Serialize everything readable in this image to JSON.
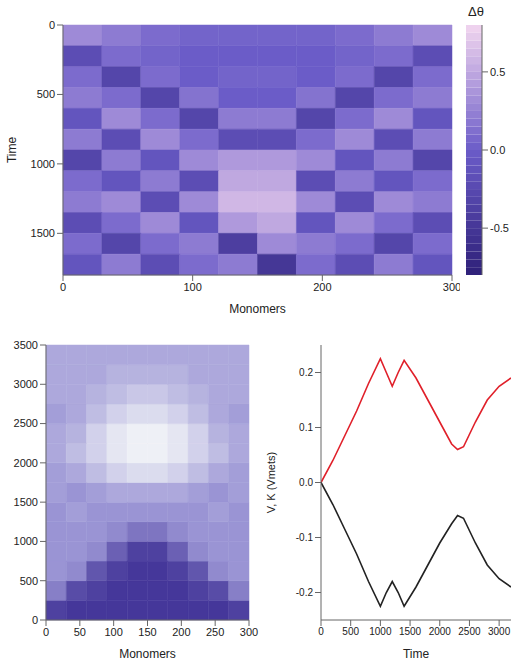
{
  "chart_data": [
    {
      "type": "heatmap",
      "x_label": "Monomers",
      "y_label": "Time",
      "x_edges": [
        0,
        30,
        60,
        90,
        120,
        150,
        180,
        210,
        240,
        270,
        300
      ],
      "y_edges": [
        0,
        150,
        300,
        450,
        600,
        750,
        900,
        1050,
        1200,
        1350,
        1500,
        1650,
        1800
      ],
      "cells": [
        [
          0.3,
          0.2,
          0.1,
          0.05,
          0.05,
          0.05,
          0.05,
          0.1,
          0.2,
          0.3
        ],
        [
          -0.2,
          0.1,
          0.05,
          0,
          0,
          0,
          0,
          0.05,
          0.1,
          -0.2
        ],
        [
          0.1,
          -0.3,
          0.1,
          0,
          0.05,
          0.05,
          0,
          0.1,
          -0.3,
          0.1
        ],
        [
          0.2,
          0.1,
          -0.3,
          0.15,
          0,
          0,
          0.15,
          -0.3,
          0.1,
          0.2
        ],
        [
          -0.1,
          0.3,
          0.1,
          -0.3,
          0.2,
          0.2,
          -0.3,
          0.1,
          0.3,
          -0.1
        ],
        [
          0.2,
          -0.2,
          0.3,
          0.1,
          -0.2,
          -0.2,
          0.1,
          0.3,
          -0.2,
          0.2
        ],
        [
          -0.3,
          0.2,
          -0.1,
          0.3,
          0.4,
          0.4,
          0.3,
          -0.1,
          0.2,
          -0.3
        ],
        [
          0.1,
          -0.1,
          0.2,
          -0.2,
          0.5,
          0.5,
          -0.2,
          0.2,
          -0.1,
          0.1
        ],
        [
          0.2,
          0.3,
          -0.2,
          0.3,
          0.6,
          0.6,
          0.3,
          -0.2,
          0.3,
          0.2
        ],
        [
          -0.2,
          0.1,
          0.3,
          -0.1,
          0.4,
          0.5,
          -0.1,
          0.3,
          0.1,
          -0.2
        ],
        [
          0.1,
          -0.3,
          0.1,
          0.2,
          -0.4,
          0.3,
          0.2,
          0.1,
          -0.3,
          0.1
        ],
        [
          -0.1,
          0.2,
          -0.2,
          0.1,
          0.2,
          -0.5,
          0.1,
          -0.2,
          0.2,
          -0.1
        ]
      ],
      "xlim": [
        0,
        300
      ],
      "xticks": [
        0,
        100,
        200,
        300
      ],
      "ylim": [
        0,
        1800
      ],
      "yticks": [
        0,
        500,
        1000,
        1500
      ],
      "colorbar": {
        "label": "Δθ",
        "lim": [
          -0.8,
          0.8
        ],
        "ticks": [
          -0.5,
          {
            "value": 0,
            "label": "0.0"
          },
          0.5
        ]
      }
    },
    {
      "type": "heatmap",
      "x_label": "Monomers",
      "x_edges": [
        0,
        30,
        60,
        90,
        120,
        150,
        180,
        210,
        240,
        270,
        300
      ],
      "y_edges": [
        0,
        250,
        500,
        750,
        1000,
        1250,
        1500,
        1750,
        2000,
        2250,
        2500,
        2750,
        3000,
        3250,
        3500
      ],
      "cells": [
        [
          0.1,
          0.05,
          0.05,
          0.05,
          0.05,
          0.05,
          0.05,
          0.05,
          0.05,
          0.1
        ],
        [
          0.4,
          0.15,
          0.1,
          0.05,
          0.05,
          0.05,
          0.05,
          0.1,
          0.15,
          0.4
        ],
        [
          0.5,
          0.45,
          0.2,
          0.1,
          0.05,
          0.05,
          0.1,
          0.2,
          0.45,
          0.5
        ],
        [
          0.5,
          0.5,
          0.45,
          0.25,
          0.1,
          0.1,
          0.25,
          0.45,
          0.5,
          0.5
        ],
        [
          0.5,
          0.5,
          0.5,
          0.45,
          0.35,
          0.35,
          0.45,
          0.5,
          0.5,
          0.5
        ],
        [
          0.5,
          0.55,
          0.5,
          0.5,
          0.5,
          0.5,
          0.5,
          0.5,
          0.55,
          0.5
        ],
        [
          0.55,
          0.5,
          0.55,
          0.6,
          0.6,
          0.6,
          0.6,
          0.55,
          0.5,
          0.55
        ],
        [
          0.55,
          0.6,
          0.7,
          0.8,
          0.85,
          0.85,
          0.8,
          0.7,
          0.6,
          0.55
        ],
        [
          0.6,
          0.7,
          0.8,
          0.9,
          0.95,
          0.95,
          0.9,
          0.8,
          0.7,
          0.6
        ],
        [
          0.6,
          0.65,
          0.8,
          0.9,
          0.95,
          0.95,
          0.9,
          0.8,
          0.65,
          0.6
        ],
        [
          0.55,
          0.6,
          0.7,
          0.8,
          0.85,
          0.85,
          0.8,
          0.7,
          0.6,
          0.55
        ],
        [
          0.6,
          0.6,
          0.65,
          0.7,
          0.75,
          0.75,
          0.7,
          0.65,
          0.6,
          0.6
        ],
        [
          0.6,
          0.6,
          0.6,
          0.65,
          0.65,
          0.65,
          0.65,
          0.6,
          0.6,
          0.6
        ],
        [
          0.6,
          0.6,
          0.6,
          0.6,
          0.6,
          0.6,
          0.6,
          0.6,
          0.6,
          0.6
        ]
      ],
      "xlim": [
        0,
        300
      ],
      "xticks": [
        0,
        50,
        100,
        150,
        200,
        250,
        300
      ],
      "ylim": [
        0,
        3500
      ],
      "yticks": [
        0,
        500,
        1000,
        1500,
        2000,
        2500,
        3000,
        3500
      ]
    },
    {
      "type": "line",
      "x_label": "Time",
      "y_label": "V, K (Vmets)",
      "x": [
        0,
        200,
        400,
        600,
        800,
        1000,
        1100,
        1200,
        1300,
        1400,
        1600,
        1800,
        2000,
        2200,
        2300,
        2400,
        2600,
        2800,
        3000,
        3200
      ],
      "series": [
        {
          "color": "#e0202a",
          "values": [
            0,
            0.04,
            0.085,
            0.13,
            0.18,
            0.225,
            0.2,
            0.175,
            0.2,
            0.222,
            0.19,
            0.15,
            0.11,
            0.07,
            0.06,
            0.065,
            0.11,
            0.15,
            0.175,
            0.19
          ]
        },
        {
          "color": "#222222",
          "values": [
            0,
            -0.04,
            -0.085,
            -0.13,
            -0.18,
            -0.225,
            -0.2,
            -0.18,
            -0.2,
            -0.225,
            -0.19,
            -0.15,
            -0.11,
            -0.075,
            -0.06,
            -0.065,
            -0.11,
            -0.15,
            -0.175,
            -0.19
          ]
        }
      ],
      "xlim": [
        0,
        3200
      ],
      "xticks": [
        0,
        500,
        1000,
        1500,
        2000,
        2500,
        3000
      ],
      "ylim": [
        -0.25,
        0.25
      ],
      "yticks": [
        -0.2,
        -0.1,
        {
          "value": 0,
          "label": "0.0"
        },
        0.1,
        0.2
      ]
    }
  ]
}
